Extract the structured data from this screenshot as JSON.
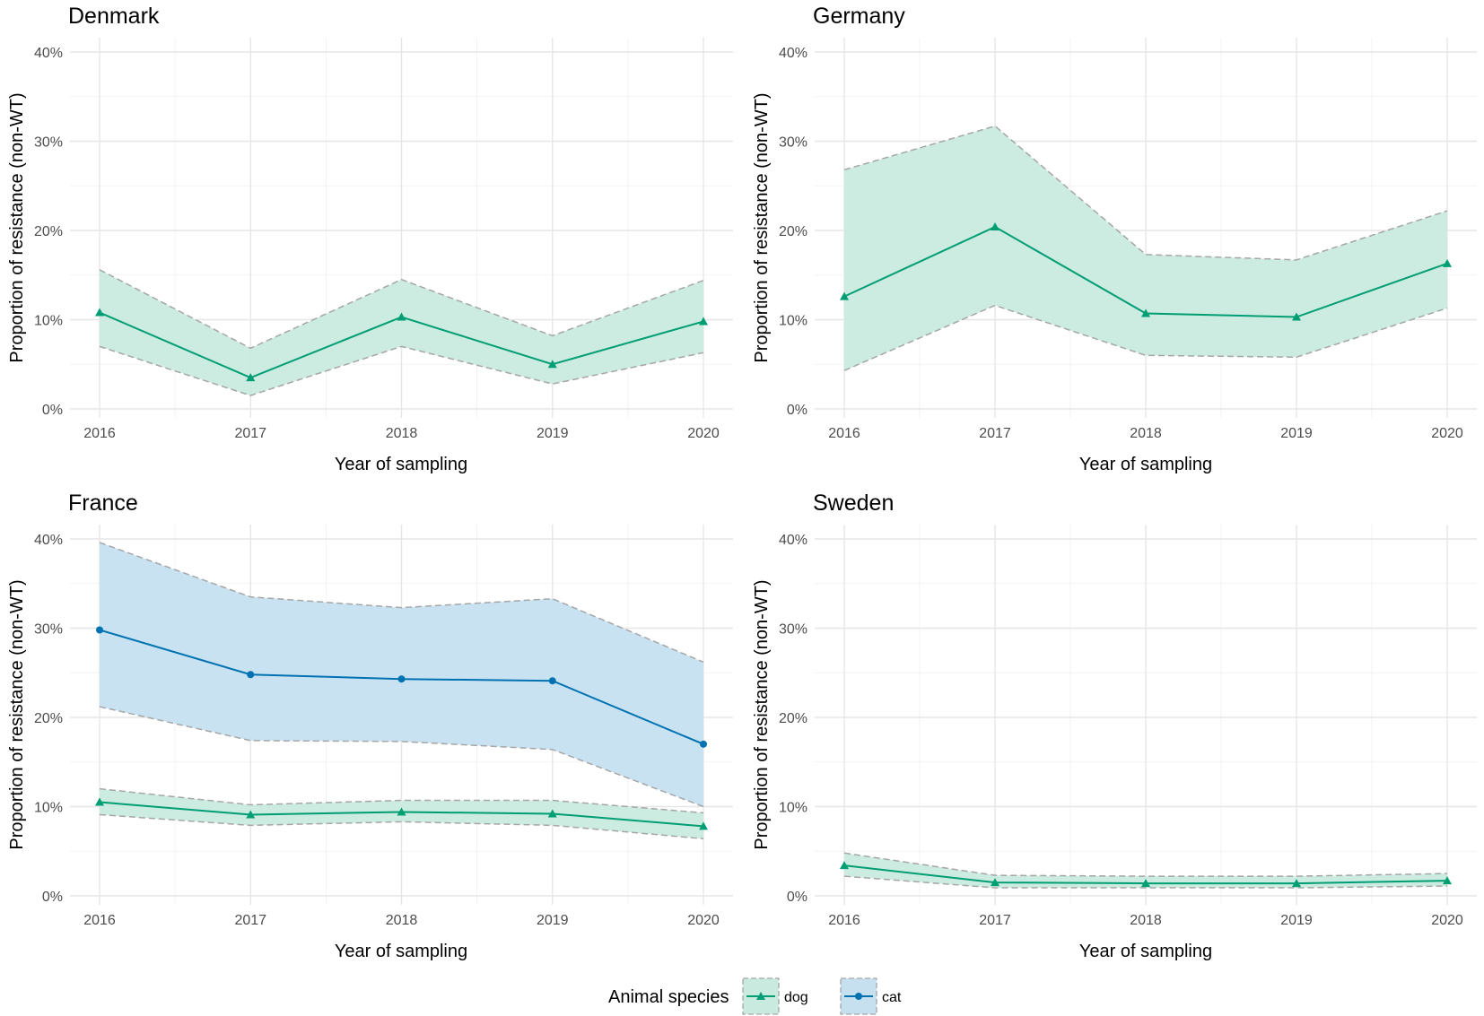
{
  "chart_data": [
    {
      "type": "line",
      "title": "Denmark",
      "xlabel": "Year of sampling",
      "ylabel": "Proportion of resistance (non-WT)",
      "x": [
        2016,
        2017,
        2018,
        2019,
        2020
      ],
      "ylim": [
        0,
        40
      ],
      "yticks": [
        "0%",
        "10%",
        "20%",
        "30%",
        "40%"
      ],
      "series": [
        {
          "name": "dog",
          "values": [
            10.8,
            3.5,
            10.3,
            5.0,
            9.8
          ],
          "lower": [
            7.0,
            1.5,
            7.0,
            2.8,
            6.3
          ],
          "upper": [
            15.6,
            6.8,
            14.5,
            8.2,
            14.4
          ]
        }
      ]
    },
    {
      "type": "line",
      "title": "Germany",
      "xlabel": "Year of sampling",
      "ylabel": "Proportion of resistance (non-WT)",
      "x": [
        2016,
        2017,
        2018,
        2019,
        2020
      ],
      "ylim": [
        0,
        40
      ],
      "yticks": [
        "0%",
        "10%",
        "20%",
        "30%",
        "40%"
      ],
      "series": [
        {
          "name": "dog",
          "values": [
            12.6,
            20.4,
            10.7,
            10.3,
            16.3
          ],
          "lower": [
            4.3,
            11.6,
            6.0,
            5.8,
            11.3
          ],
          "upper": [
            26.8,
            31.7,
            17.3,
            16.7,
            22.2
          ]
        }
      ]
    },
    {
      "type": "line",
      "title": "France",
      "xlabel": "Year of sampling",
      "ylabel": "Proportion of resistance (non-WT)",
      "x": [
        2016,
        2017,
        2018,
        2019,
        2020
      ],
      "ylim": [
        0,
        40
      ],
      "yticks": [
        "0%",
        "10%",
        "20%",
        "30%",
        "40%"
      ],
      "series": [
        {
          "name": "dog",
          "values": [
            10.5,
            9.1,
            9.4,
            9.2,
            7.8
          ],
          "lower": [
            9.1,
            7.9,
            8.3,
            7.9,
            6.4
          ],
          "upper": [
            12.0,
            10.2,
            10.7,
            10.7,
            9.3
          ]
        },
        {
          "name": "cat",
          "values": [
            29.8,
            24.8,
            24.3,
            24.1,
            17.0
          ],
          "lower": [
            21.2,
            17.4,
            17.3,
            16.4,
            10.0
          ],
          "upper": [
            39.6,
            33.5,
            32.3,
            33.3,
            26.2
          ]
        }
      ]
    },
    {
      "type": "line",
      "title": "Sweden",
      "xlabel": "Year of sampling",
      "ylabel": "Proportion of resistance (non-WT)",
      "x": [
        2016,
        2017,
        2018,
        2019,
        2020
      ],
      "ylim": [
        0,
        40
      ],
      "yticks": [
        "0%",
        "10%",
        "20%",
        "30%",
        "40%"
      ],
      "series": [
        {
          "name": "dog",
          "values": [
            3.4,
            1.5,
            1.4,
            1.4,
            1.7
          ],
          "lower": [
            2.2,
            0.9,
            0.9,
            0.9,
            1.1
          ],
          "upper": [
            4.8,
            2.3,
            2.2,
            2.2,
            2.5
          ]
        }
      ]
    }
  ],
  "legend": {
    "title": "Animal species",
    "items": [
      {
        "name": "dog",
        "label": "dog"
      },
      {
        "name": "cat",
        "label": "cat"
      }
    ]
  },
  "colors": {
    "dog_line": "#009E73",
    "dog_fill": "#C9EADF",
    "cat_line": "#0072B2",
    "cat_fill": "#C6E0F0",
    "ci_edge": "#A6A6A6"
  }
}
